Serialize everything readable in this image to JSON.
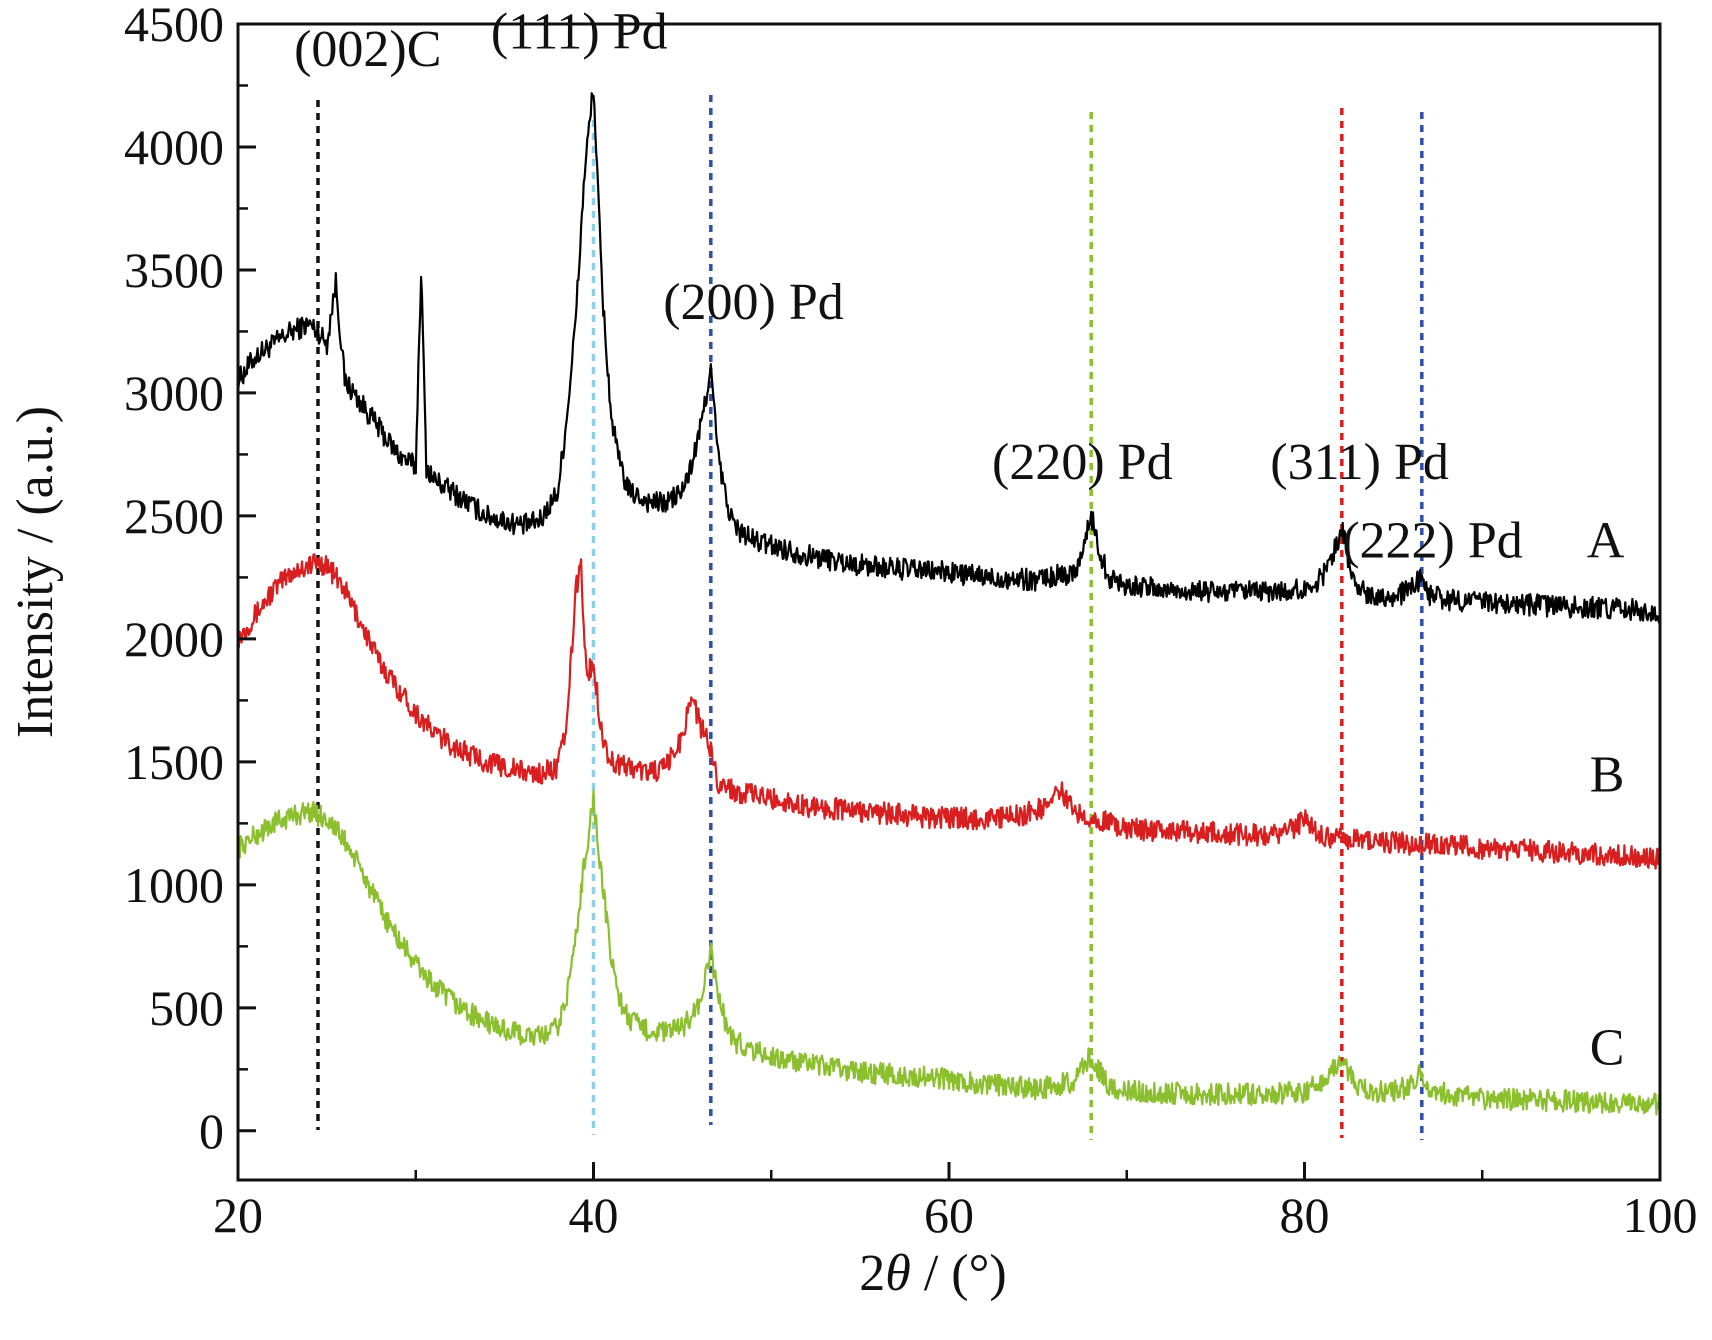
{
  "chart_data": {
    "type": "line",
    "xlabel": {
      "prefix": "2",
      "symbol": "θ",
      "suffix": " / (°)"
    },
    "ylabel": "Intensity / (a.u.)",
    "xlim": [
      20,
      100
    ],
    "ylim": [
      -200,
      4500
    ],
    "x_ticks": [
      20,
      40,
      60,
      80,
      100
    ],
    "x_tick_labels": [
      "20",
      "40",
      "60",
      "80",
      "100"
    ],
    "y_ticks": [
      0,
      500,
      1000,
      1500,
      2000,
      2500,
      3000,
      3500,
      4000,
      4500
    ],
    "y_tick_labels": [
      "0",
      "500",
      "1000",
      "1500",
      "2000",
      "2500",
      "3000",
      "3500",
      "4000",
      "4500"
    ],
    "grid": false,
    "reference_lines": [
      {
        "x": 24.5,
        "color": "#111111",
        "label": "(002)C"
      },
      {
        "x": 40.0,
        "color": "#8fd0e8",
        "label": "(111) Pd"
      },
      {
        "x": 46.6,
        "color": "#2f4fa8",
        "label": "(200) Pd"
      },
      {
        "x": 68.0,
        "color": "#8bbf2e",
        "label": "(220) Pd"
      },
      {
        "x": 82.1,
        "color": "#d81e1e",
        "label": "(311) Pd"
      },
      {
        "x": 86.6,
        "color": "#2f4fa8",
        "label": "(222) Pd"
      }
    ],
    "series": [
      {
        "name": "A",
        "color": "#000000",
        "x": [
          20,
          21,
          22,
          23,
          24,
          24.5,
          25,
          25.5,
          26,
          27,
          28,
          29,
          30,
          30.3,
          30.6,
          31,
          32,
          33,
          34,
          35,
          36,
          37,
          38,
          38.5,
          39,
          39.5,
          40,
          40.5,
          41,
          41.5,
          42,
          43,
          44,
          45,
          45.5,
          46,
          46.6,
          47,
          47.5,
          48,
          49,
          50,
          52,
          55,
          58,
          60,
          62,
          65,
          67,
          67.5,
          68,
          68.5,
          69,
          70,
          72,
          75,
          78,
          80,
          81,
          81.5,
          82.1,
          82.6,
          83,
          84,
          85,
          86,
          86.6,
          87,
          88,
          90,
          92,
          95,
          98,
          100
        ],
        "y": [
          3050,
          3150,
          3200,
          3250,
          3280,
          3250,
          3200,
          3450,
          3050,
          2950,
          2850,
          2750,
          2700,
          3500,
          2700,
          2650,
          2600,
          2550,
          2500,
          2480,
          2460,
          2480,
          2600,
          2900,
          3300,
          3900,
          4250,
          3400,
          2900,
          2700,
          2600,
          2560,
          2550,
          2600,
          2700,
          2850,
          3100,
          2750,
          2550,
          2450,
          2400,
          2380,
          2340,
          2300,
          2280,
          2270,
          2250,
          2240,
          2270,
          2350,
          2500,
          2350,
          2250,
          2220,
          2200,
          2190,
          2190,
          2200,
          2250,
          2330,
          2450,
          2280,
          2200,
          2180,
          2170,
          2200,
          2250,
          2180,
          2160,
          2150,
          2140,
          2130,
          2120,
          2110
        ]
      },
      {
        "name": "B",
        "color": "#d81e1e",
        "x": [
          20,
          21,
          22,
          23,
          24,
          24.5,
          25,
          26,
          27,
          28,
          29,
          30,
          31,
          32,
          33,
          34,
          35,
          36,
          37,
          38,
          38.5,
          39,
          39.3,
          39.6,
          40,
          40.5,
          41,
          42,
          43,
          44,
          45,
          45.5,
          46,
          46.6,
          47,
          48,
          50,
          52,
          55,
          58,
          60,
          62,
          64,
          65.5,
          66.2,
          67,
          68,
          69,
          70,
          72,
          75,
          78,
          79.5,
          80,
          81,
          82,
          83,
          85,
          88,
          90,
          95,
          100
        ],
        "y": [
          2000,
          2100,
          2200,
          2270,
          2300,
          2310,
          2300,
          2200,
          2050,
          1900,
          1800,
          1700,
          1620,
          1570,
          1530,
          1500,
          1480,
          1460,
          1450,
          1480,
          1650,
          2200,
          2300,
          1850,
          1900,
          1600,
          1500,
          1480,
          1460,
          1470,
          1600,
          1780,
          1650,
          1550,
          1420,
          1380,
          1350,
          1320,
          1300,
          1280,
          1270,
          1270,
          1280,
          1320,
          1390,
          1300,
          1280,
          1250,
          1230,
          1220,
          1210,
          1200,
          1230,
          1270,
          1200,
          1190,
          1180,
          1170,
          1160,
          1150,
          1130,
          1110
        ]
      },
      {
        "name": "C",
        "color": "#8bbf2e",
        "x": [
          20,
          21,
          22,
          23,
          24,
          25,
          26,
          27,
          28,
          29,
          30,
          31,
          32,
          33,
          34,
          35,
          36,
          37,
          38,
          38.5,
          39,
          39.5,
          40,
          40.5,
          41,
          41.5,
          42,
          43,
          44,
          45,
          46,
          46.6,
          47,
          47.5,
          48,
          50,
          52,
          55,
          58,
          60,
          62,
          65,
          67,
          67.5,
          68,
          68.5,
          69,
          70,
          72,
          75,
          78,
          80,
          81,
          81.5,
          82.1,
          82.6,
          83,
          84,
          85,
          86,
          86.6,
          87,
          88,
          90,
          95,
          100
        ],
        "y": [
          1150,
          1200,
          1250,
          1280,
          1300,
          1270,
          1180,
          1050,
          900,
          780,
          680,
          590,
          530,
          480,
          440,
          410,
          390,
          380,
          420,
          550,
          780,
          1100,
          1350,
          1000,
          700,
          530,
          450,
          410,
          400,
          420,
          520,
          720,
          560,
          420,
          360,
          300,
          270,
          240,
          220,
          210,
          190,
          170,
          200,
          250,
          310,
          240,
          180,
          160,
          155,
          150,
          150,
          160,
          200,
          250,
          300,
          220,
          170,
          160,
          160,
          180,
          240,
          170,
          150,
          130,
          120,
          110
        ]
      }
    ],
    "annotations": [
      {
        "text": "(002)C",
        "x": 27.3,
        "y": 4330
      },
      {
        "text": "(111) Pd",
        "x": 39.2,
        "y": 4400
      },
      {
        "text": "(200) Pd",
        "x": 49.0,
        "y": 3300
      },
      {
        "text": "(220) Pd",
        "x": 67.5,
        "y": 2650
      },
      {
        "text": "(311) Pd",
        "x": 83.1,
        "y": 2650
      },
      {
        "text": "(222) Pd",
        "x": 87.2,
        "y": 2330
      },
      {
        "text": "A",
        "x": 98.0,
        "y": 2330
      },
      {
        "text": "B",
        "x": 98.0,
        "y": 1380
      },
      {
        "text": "C",
        "x": 98.0,
        "y": 270
      }
    ]
  }
}
